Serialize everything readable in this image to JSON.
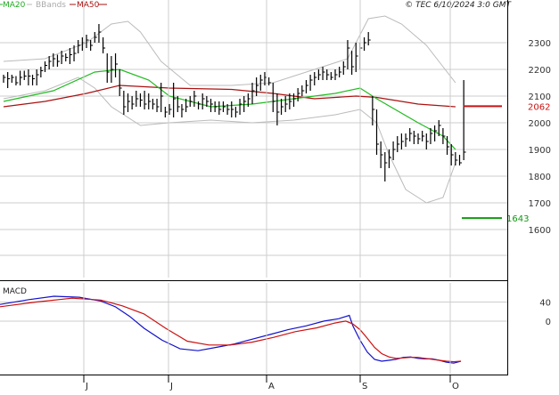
{
  "legend": {
    "ma20": "MA20",
    "bbands": "BBands",
    "ma50": "MA50"
  },
  "timestamp": "© TEC 6/10/2024 3:0 GMT",
  "colors": {
    "ma20": "#22bb22",
    "ma50": "#aa1111",
    "bbands": "#bbbbbb",
    "price": "#000000",
    "macd": "#1111cc",
    "macd_signal": "#cc1111",
    "level_resistance": "#cc1111",
    "level_support": "#119911",
    "grid": "#cccccc"
  },
  "chart_data": [
    {
      "type": "ohlc",
      "y_ticks": [
        "2300",
        "2200",
        "2100",
        "2000",
        "1900",
        "1800",
        "1700",
        "1600"
      ],
      "ylim": [
        1420,
        2420
      ],
      "x_ticks": [
        "J",
        "J",
        "A",
        "S",
        "O"
      ],
      "levels": [
        {
          "label": "2062",
          "value": 2062
        },
        {
          "label": "1643",
          "value": 1643
        }
      ],
      "bars": [
        [
          2150,
          2180,
          2170
        ],
        [
          2190,
          2130,
          2165
        ],
        [
          2150,
          2180,
          2170
        ],
        [
          2175,
          2140,
          2150
        ],
        [
          2195,
          2140,
          2170
        ],
        [
          2195,
          2160,
          2175
        ],
        [
          2200,
          2140,
          2175
        ],
        [
          2180,
          2140,
          2165
        ],
        [
          2200,
          2140,
          2180
        ],
        [
          2210,
          2170,
          2195
        ],
        [
          2230,
          2190,
          2215
        ],
        [
          2250,
          2200,
          2230
        ],
        [
          2260,
          2210,
          2240
        ],
        [
          2255,
          2210,
          2230
        ],
        [
          2270,
          2220,
          2250
        ],
        [
          2260,
          2230,
          2245
        ],
        [
          2280,
          2220,
          2255
        ],
        [
          2290,
          2230,
          2260
        ],
        [
          2310,
          2260,
          2290
        ],
        [
          2320,
          2270,
          2300
        ],
        [
          2330,
          2280,
          2310
        ],
        [
          2310,
          2270,
          2290
        ],
        [
          2340,
          2300,
          2320
        ],
        [
          2370,
          2300,
          2340
        ],
        [
          2320,
          2260,
          2280
        ],
        [
          2260,
          2150,
          2190
        ],
        [
          2250,
          2150,
          2200
        ],
        [
          2260,
          2170,
          2220
        ],
        [
          2200,
          2100,
          2130
        ],
        [
          2120,
          2030,
          2060
        ],
        [
          2110,
          2040,
          2080
        ],
        [
          2100,
          2050,
          2070
        ],
        [
          2120,
          2060,
          2090
        ],
        [
          2110,
          2060,
          2085
        ],
        [
          2120,
          2050,
          2070
        ],
        [
          2110,
          2050,
          2080
        ],
        [
          2090,
          2050,
          2070
        ],
        [
          2090,
          2040,
          2060
        ],
        [
          2150,
          2040,
          2100
        ],
        [
          2060,
          2020,
          2040
        ],
        [
          2070,
          2030,
          2050
        ],
        [
          2150,
          2020,
          2090
        ],
        [
          2100,
          2040,
          2060
        ],
        [
          2070,
          2020,
          2050
        ],
        [
          2090,
          2040,
          2060
        ],
        [
          2100,
          2060,
          2080
        ],
        [
          2120,
          2060,
          2100
        ],
        [
          2080,
          2050,
          2070
        ],
        [
          2110,
          2050,
          2090
        ],
        [
          2100,
          2060,
          2080
        ],
        [
          2090,
          2040,
          2070
        ],
        [
          2080,
          2040,
          2060
        ],
        [
          2080,
          2030,
          2050
        ],
        [
          2080,
          2040,
          2060
        ],
        [
          2070,
          2030,
          2050
        ],
        [
          2080,
          2020,
          2050
        ],
        [
          2060,
          2020,
          2040
        ],
        [
          2090,
          2030,
          2070
        ],
        [
          2100,
          2040,
          2080
        ],
        [
          2110,
          2060,
          2090
        ],
        [
          2150,
          2070,
          2120
        ],
        [
          2170,
          2100,
          2140
        ],
        [
          2180,
          2120,
          2160
        ],
        [
          2190,
          2140,
          2170
        ],
        [
          2170,
          2140,
          2150
        ],
        [
          2150,
          2040,
          2080
        ],
        [
          2110,
          1990,
          2040
        ],
        [
          2090,
          2030,
          2060
        ],
        [
          2100,
          2040,
          2070
        ],
        [
          2110,
          2050,
          2080
        ],
        [
          2110,
          2060,
          2090
        ],
        [
          2130,
          2080,
          2110
        ],
        [
          2140,
          2100,
          2120
        ],
        [
          2160,
          2110,
          2140
        ],
        [
          2180,
          2120,
          2160
        ],
        [
          2190,
          2140,
          2170
        ],
        [
          2200,
          2160,
          2180
        ],
        [
          2210,
          2160,
          2190
        ],
        [
          2200,
          2160,
          2180
        ],
        [
          2190,
          2160,
          2170
        ],
        [
          2200,
          2160,
          2180
        ],
        [
          2210,
          2170,
          2190
        ],
        [
          2230,
          2180,
          2210
        ],
        [
          2310,
          2200,
          2280
        ],
        [
          2270,
          2180,
          2210
        ],
        [
          2300,
          2190,
          2250
        ],
        [
          2300,
          2200,
          2280
        ],
        [
          2320,
          2270,
          2300
        ],
        [
          2340,
          2290,
          2310
        ],
        [
          2100,
          1990,
          2050
        ],
        [
          2050,
          1880,
          1920
        ],
        [
          1930,
          1830,
          1880
        ],
        [
          1890,
          1780,
          1850
        ],
        [
          1900,
          1830,
          1870
        ],
        [
          1930,
          1860,
          1900
        ],
        [
          1950,
          1890,
          1920
        ],
        [
          1960,
          1900,
          1930
        ],
        [
          1960,
          1910,
          1940
        ],
        [
          1980,
          1930,
          1960
        ],
        [
          1970,
          1920,
          1950
        ],
        [
          1960,
          1920,
          1940
        ],
        [
          1970,
          1930,
          1950
        ],
        [
          1960,
          1900,
          1930
        ],
        [
          1980,
          1920,
          1960
        ],
        [
          1990,
          1930,
          1970
        ],
        [
          2010,
          1950,
          1990
        ],
        [
          1980,
          1920,
          1950
        ],
        [
          1950,
          1880,
          1910
        ],
        [
          1920,
          1840,
          1880
        ],
        [
          1890,
          1840,
          1860
        ],
        [
          1880,
          1840,
          1850
        ],
        [
          2160,
          1860,
          1890
        ]
      ],
      "ma20": [
        [
          0,
          2080
        ],
        [
          12,
          2120
        ],
        [
          22,
          2190
        ],
        [
          28,
          2200
        ],
        [
          35,
          2160
        ],
        [
          40,
          2100
        ],
        [
          50,
          2060
        ],
        [
          60,
          2070
        ],
        [
          70,
          2090
        ],
        [
          80,
          2110
        ],
        [
          86,
          2130
        ],
        [
          90,
          2090
        ],
        [
          100,
          2000
        ],
        [
          106,
          1950
        ],
        [
          109,
          1900
        ]
      ],
      "ma50": [
        [
          0,
          2060
        ],
        [
          10,
          2080
        ],
        [
          20,
          2110
        ],
        [
          28,
          2140
        ],
        [
          40,
          2130
        ],
        [
          55,
          2125
        ],
        [
          65,
          2110
        ],
        [
          75,
          2090
        ],
        [
          85,
          2100
        ],
        [
          90,
          2095
        ],
        [
          100,
          2070
        ],
        [
          109,
          2060
        ]
      ],
      "bbands_upper": [
        [
          0,
          2230
        ],
        [
          10,
          2240
        ],
        [
          20,
          2300
        ],
        [
          26,
          2370
        ],
        [
          30,
          2380
        ],
        [
          33,
          2340
        ],
        [
          38,
          2230
        ],
        [
          45,
          2140
        ],
        [
          55,
          2140
        ],
        [
          65,
          2150
        ],
        [
          75,
          2200
        ],
        [
          83,
          2240
        ],
        [
          88,
          2390
        ],
        [
          92,
          2400
        ],
        [
          96,
          2370
        ],
        [
          102,
          2290
        ],
        [
          106,
          2210
        ],
        [
          109,
          2150
        ]
      ],
      "bbands_lower": [
        [
          0,
          2090
        ],
        [
          10,
          2120
        ],
        [
          18,
          2170
        ],
        [
          22,
          2130
        ],
        [
          26,
          2060
        ],
        [
          33,
          1990
        ],
        [
          40,
          2000
        ],
        [
          50,
          2010
        ],
        [
          60,
          2000
        ],
        [
          70,
          2010
        ],
        [
          80,
          2030
        ],
        [
          86,
          2050
        ],
        [
          90,
          2000
        ],
        [
          93,
          1880
        ],
        [
          97,
          1750
        ],
        [
          102,
          1700
        ],
        [
          106,
          1720
        ],
        [
          109,
          1850
        ]
      ]
    },
    {
      "type": "line",
      "title": "MACD",
      "y_ticks": [
        "40",
        "0"
      ],
      "ylim": [
        -110,
        80
      ],
      "x_ticks": [
        "J",
        "J",
        "A",
        "S",
        "O"
      ],
      "series": [
        {
          "key": "macd",
          "points": [
            [
              0,
              35
            ],
            [
              8,
              45
            ],
            [
              15,
              52
            ],
            [
              22,
              50
            ],
            [
              28,
              42
            ],
            [
              32,
              30
            ],
            [
              36,
              10
            ],
            [
              40,
              -15
            ],
            [
              45,
              -40
            ],
            [
              50,
              -58
            ],
            [
              55,
              -62
            ],
            [
              60,
              -55
            ],
            [
              65,
              -48
            ],
            [
              70,
              -38
            ],
            [
              75,
              -28
            ],
            [
              80,
              -18
            ],
            [
              85,
              -10
            ],
            [
              90,
              0
            ],
            [
              94,
              5
            ],
            [
              97,
              12
            ],
            [
              98,
              -10
            ],
            [
              100,
              -40
            ],
            [
              102,
              -65
            ],
            [
              104,
              -80
            ],
            [
              106,
              -84
            ],
            [
              108,
              -82
            ],
            [
              110,
              -80
            ],
            [
              112,
              -76
            ],
            [
              114,
              -75
            ],
            [
              116,
              -78
            ],
            [
              118,
              -79
            ],
            [
              120,
              -79
            ],
            [
              122,
              -82
            ],
            [
              124,
              -86
            ],
            [
              126,
              -88
            ],
            [
              128,
              -84
            ]
          ]
        },
        {
          "key": "macd_signal",
          "points": [
            [
              0,
              30
            ],
            [
              10,
              40
            ],
            [
              20,
              48
            ],
            [
              28,
              44
            ],
            [
              34,
              32
            ],
            [
              40,
              15
            ],
            [
              46,
              -15
            ],
            [
              52,
              -42
            ],
            [
              58,
              -50
            ],
            [
              64,
              -50
            ],
            [
              70,
              -44
            ],
            [
              76,
              -34
            ],
            [
              82,
              -22
            ],
            [
              88,
              -14
            ],
            [
              93,
              -4
            ],
            [
              96,
              0
            ],
            [
              98,
              -6
            ],
            [
              100,
              -18
            ],
            [
              102,
              -36
            ],
            [
              104,
              -55
            ],
            [
              106,
              -68
            ],
            [
              108,
              -75
            ],
            [
              110,
              -78
            ],
            [
              112,
              -77
            ],
            [
              114,
              -76
            ],
            [
              116,
              -76
            ],
            [
              118,
              -78
            ],
            [
              120,
              -80
            ],
            [
              122,
              -82
            ],
            [
              124,
              -84
            ],
            [
              126,
              -85
            ],
            [
              128,
              -84
            ]
          ]
        }
      ]
    }
  ]
}
